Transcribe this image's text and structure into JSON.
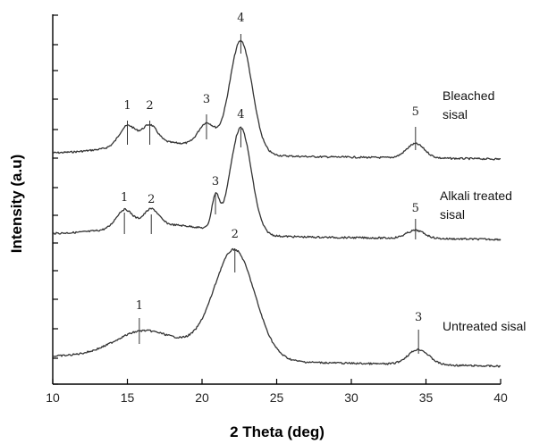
{
  "chart_data": {
    "type": "line",
    "title": "",
    "xlabel": "2 Theta (deg)",
    "ylabel": "Intensity (a.u)",
    "xlim": [
      10,
      40
    ],
    "x_ticks": [
      10,
      15,
      20,
      25,
      30,
      35,
      40
    ],
    "y_ticks_labeled": false,
    "grid": false,
    "series": [
      {
        "name": "Bleached sisal",
        "label_lines": [
          "Bleached",
          "sisal"
        ],
        "peaks": [
          {
            "label": "1",
            "x": 15.0
          },
          {
            "label": "2",
            "x": 16.5
          },
          {
            "label": "3",
            "x": 20.3
          },
          {
            "label": "4",
            "x": 22.6
          },
          {
            "label": "5",
            "x": 34.3
          }
        ]
      },
      {
        "name": "Alkali treated sisal",
        "label_lines": [
          "Alkali treated",
          "sisal"
        ],
        "peaks": [
          {
            "label": "1",
            "x": 14.8
          },
          {
            "label": "2",
            "x": 16.6
          },
          {
            "label": "3",
            "x": 20.9
          },
          {
            "label": "4",
            "x": 22.6
          },
          {
            "label": "5",
            "x": 34.3
          }
        ]
      },
      {
        "name": "Untreated sisal",
        "label_lines": [
          "Untreated sisal"
        ],
        "peaks": [
          {
            "label": "1",
            "x": 15.8
          },
          {
            "label": "2",
            "x": 22.2
          },
          {
            "label": "3",
            "x": 34.5
          }
        ]
      }
    ]
  }
}
